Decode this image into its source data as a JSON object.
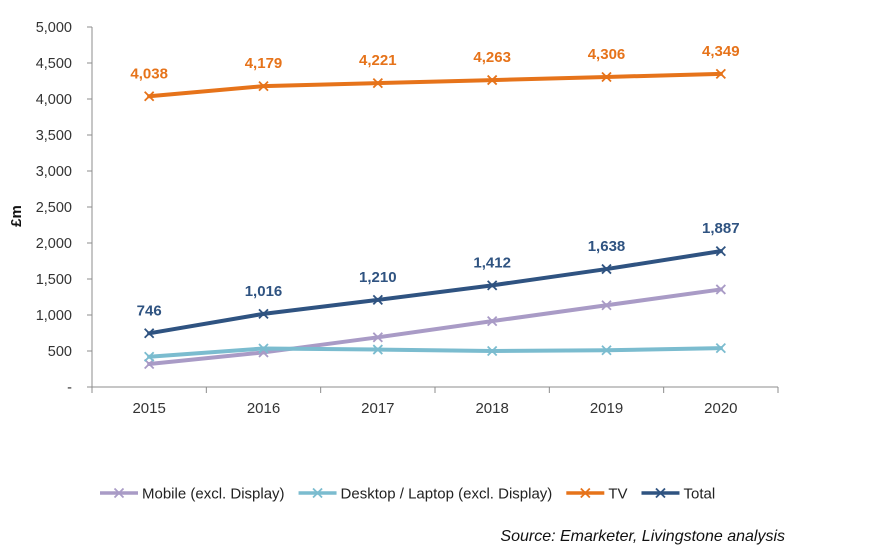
{
  "chart_data": {
    "type": "line",
    "ylabel": "£m",
    "xlabel": "",
    "ylim": [
      0,
      5000
    ],
    "yticks": [
      0,
      500,
      1000,
      1500,
      2000,
      2500,
      3000,
      3500,
      4000,
      4500,
      5000
    ],
    "ytick_labels": [
      "-",
      "500",
      "1,000",
      "1,500",
      "2,000",
      "2,500",
      "3,000",
      "3,500",
      "4,000",
      "4,500",
      "5,000"
    ],
    "categories": [
      "2015",
      "2016",
      "2017",
      "2018",
      "2019",
      "2020"
    ],
    "series": [
      {
        "name": "Mobile (excl. Display)",
        "color": "#A99BC6",
        "values": [
          320,
          480,
          690,
          915,
          1135,
          1355
        ],
        "labels": []
      },
      {
        "name": "Desktop / Laptop (excl. Display)",
        "color": "#7BBCCF",
        "values": [
          420,
          535,
          520,
          500,
          510,
          540
        ],
        "labels": []
      },
      {
        "name": "TV",
        "color": "#E6731A",
        "values": [
          4038,
          4179,
          4221,
          4263,
          4306,
          4349
        ],
        "labels": [
          "4,038",
          "4,179",
          "4,221",
          "4,263",
          "4,306",
          "4,349"
        ]
      },
      {
        "name": "Total",
        "color": "#2F5381",
        "values": [
          746,
          1016,
          1210,
          1412,
          1638,
          1887
        ],
        "labels": [
          "746",
          "1,016",
          "1,210",
          "1,412",
          "1,638",
          "1,887"
        ]
      }
    ],
    "legend_position": "bottom",
    "grid": false
  },
  "source": "Source: Emarketer, Livingstone analysis"
}
